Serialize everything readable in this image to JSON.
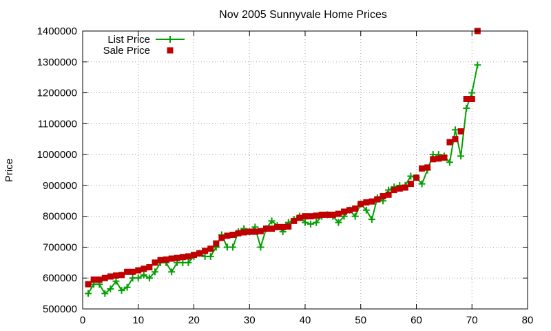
{
  "chart_data": {
    "type": "line",
    "title": "Nov 2005 Sunnyvale Home Prices",
    "xlabel": "",
    "ylabel": "Price",
    "xlim": [
      0,
      80
    ],
    "ylim": [
      500000,
      1400000
    ],
    "xticks": [
      "0",
      "10",
      "20",
      "30",
      "40",
      "50",
      "60",
      "70",
      "80"
    ],
    "yticks": [
      "500000",
      "600000",
      "700000",
      "800000",
      "900000",
      "1000000",
      "1100000",
      "1200000",
      "1300000",
      "1400000"
    ],
    "grid": true,
    "legend_position": "top-left",
    "series": [
      {
        "name": "List Price",
        "style": "linespoints",
        "color": "#00a000",
        "marker": "plus",
        "x": [
          1,
          2,
          3,
          4,
          5,
          6,
          7,
          8,
          9,
          10,
          11,
          12,
          13,
          14,
          15,
          16,
          17,
          18,
          19,
          20,
          21,
          22,
          23,
          24,
          25,
          26,
          27,
          28,
          29,
          30,
          31,
          32,
          33,
          34,
          35,
          36,
          37,
          38,
          39,
          40,
          41,
          42,
          43,
          44,
          45,
          46,
          47,
          48,
          49,
          50,
          51,
          52,
          53,
          54,
          55,
          56,
          57,
          58,
          59,
          60,
          61,
          62,
          63,
          64,
          65,
          66,
          67,
          68,
          69,
          70,
          71
        ],
        "y": [
          550000,
          580000,
          580000,
          550000,
          565000,
          590000,
          560000,
          570000,
          600000,
          600000,
          610000,
          600000,
          620000,
          650000,
          650000,
          620000,
          650000,
          650000,
          650000,
          670000,
          680000,
          670000,
          670000,
          700000,
          740000,
          700000,
          700000,
          750000,
          760000,
          750000,
          765000,
          700000,
          760000,
          785000,
          770000,
          750000,
          780000,
          790000,
          800000,
          780000,
          775000,
          780000,
          800000,
          805000,
          800000,
          780000,
          800000,
          820000,
          800000,
          840000,
          820000,
          790000,
          860000,
          850000,
          885000,
          895000,
          900000,
          900000,
          930000,
          925000,
          905000,
          950000,
          1000000,
          1000000,
          995000,
          975000,
          1080000,
          995000,
          1150000,
          1200000,
          1290000
        ]
      },
      {
        "name": "Sale Price",
        "style": "points",
        "color": "#c00000",
        "marker": "square",
        "x": [
          1,
          2,
          3,
          4,
          5,
          6,
          7,
          8,
          9,
          10,
          11,
          12,
          13,
          14,
          15,
          16,
          17,
          18,
          19,
          20,
          21,
          22,
          23,
          24,
          25,
          26,
          27,
          28,
          29,
          30,
          31,
          32,
          33,
          34,
          35,
          36,
          37,
          38,
          39,
          40,
          41,
          42,
          43,
          44,
          45,
          46,
          47,
          48,
          49,
          50,
          51,
          52,
          53,
          54,
          55,
          56,
          57,
          58,
          59,
          60,
          61,
          62,
          63,
          64,
          65,
          66,
          67,
          68,
          69,
          70,
          71
        ],
        "y": [
          580000,
          595000,
          595000,
          600000,
          605000,
          608000,
          610000,
          620000,
          620000,
          625000,
          630000,
          635000,
          650000,
          658000,
          660000,
          663000,
          665000,
          668000,
          670000,
          675000,
          680000,
          688000,
          695000,
          712000,
          730000,
          737000,
          740000,
          745000,
          748000,
          750000,
          750000,
          752000,
          760000,
          760000,
          765000,
          765000,
          767000,
          785000,
          795000,
          800000,
          800000,
          802000,
          805000,
          805000,
          805000,
          808000,
          815000,
          820000,
          825000,
          840000,
          845000,
          848000,
          855000,
          865000,
          870000,
          885000,
          890000,
          893000,
          905000,
          925000,
          955000,
          958000,
          985000,
          987000,
          990000,
          1040000,
          1050000,
          1075000,
          1180000,
          1180000,
          1400000
        ]
      }
    ]
  }
}
